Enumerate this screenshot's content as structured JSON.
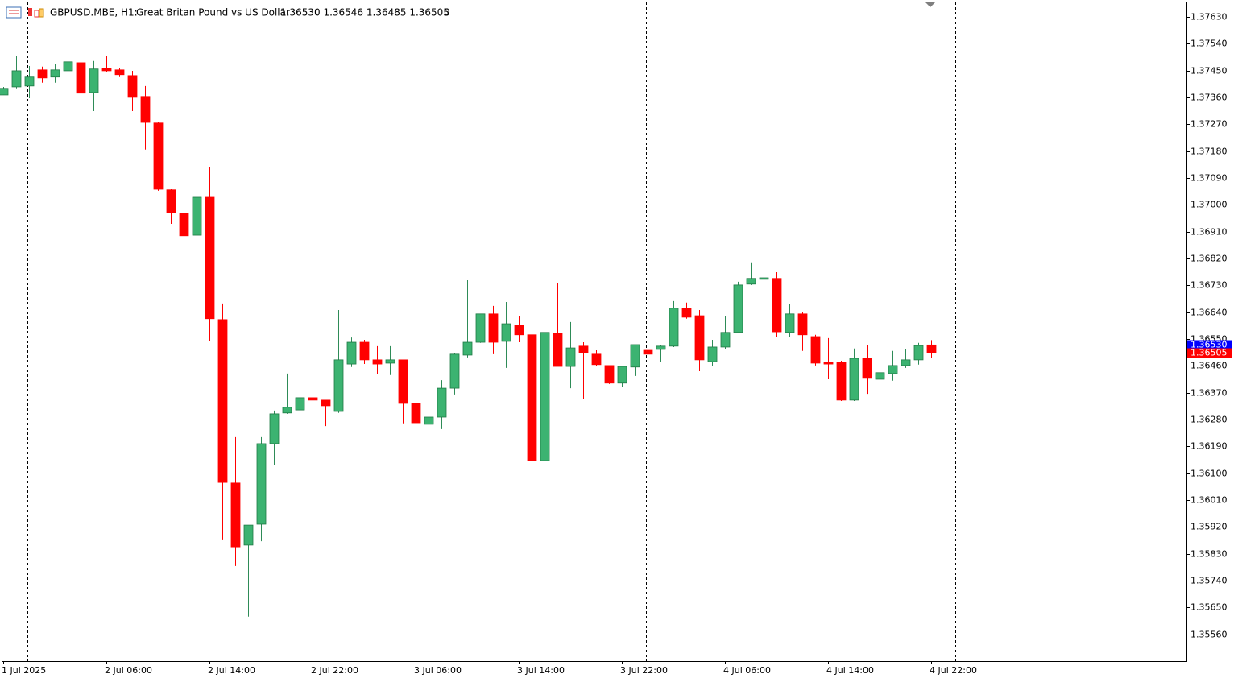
{
  "header": {
    "symbol": "GBPUSD.MBE, H1:",
    "description": "Great Britan Pound vs US Dollar",
    "ohlc": "1.36530 1.36546 1.36485 1.36505",
    "volume": "0"
  },
  "chart_data": {
    "type": "candlestick",
    "categories": [
      "1 Jul 2025",
      null,
      null,
      null,
      null,
      null,
      null,
      null,
      "2 Jul 06:00",
      null,
      null,
      null,
      null,
      null,
      null,
      null,
      "2 Jul 14:00",
      null,
      null,
      null,
      null,
      null,
      null,
      null,
      "2 Jul 22:00",
      null,
      null,
      null,
      null,
      null,
      null,
      null,
      "3 Jul 06:00",
      null,
      null,
      null,
      null,
      null,
      null,
      null,
      "3 Jul 14:00",
      null,
      null,
      null,
      null,
      null,
      null,
      null,
      "3 Jul 22:00",
      null,
      null,
      null,
      null,
      null,
      null,
      null,
      "4 Jul 06:00",
      null,
      null,
      null,
      null,
      null,
      null,
      null,
      "4 Jul 14:00",
      null,
      null,
      null,
      null,
      null,
      null,
      null,
      "4 Jul 22:00"
    ],
    "open": [
      1.37368,
      1.37395,
      1.37398,
      1.37452,
      1.37428,
      1.37449,
      1.37476,
      1.37376,
      1.37457,
      1.37452,
      1.37433,
      1.37363,
      1.37274,
      1.3705,
      1.36971,
      1.36898,
      1.37025,
      1.36615,
      1.36067,
      1.35859,
      1.35929,
      1.36199,
      1.36302,
      1.36312,
      1.36353,
      1.36345,
      1.36307,
      1.36466,
      1.36539,
      1.3648,
      1.36469,
      1.3648,
      1.36334,
      1.36264,
      1.36288,
      1.36385,
      1.36496,
      1.36539,
      1.36634,
      1.36542,
      1.36596,
      1.36564,
      1.36142,
      1.36569,
      1.36458,
      1.36526,
      1.36499,
      1.36461,
      1.36402,
      1.36456,
      1.36512,
      1.36515,
      1.36526,
      1.36653,
      1.36628,
      1.36474,
      1.36523,
      1.36572,
      1.36734,
      1.3675,
      1.36753,
      1.36572,
      1.36634,
      1.36558,
      1.36472,
      1.36472,
      1.36345,
      1.36485,
      1.36415,
      1.36434,
      1.36461,
      1.3648,
      1.3653
    ],
    "high": [
      1.37395,
      1.37498,
      1.37465,
      1.37463,
      1.37471,
      1.37492,
      1.37519,
      1.37482,
      1.375,
      1.37457,
      1.37449,
      1.37398,
      1.37276,
      1.37052,
      1.37001,
      1.37079,
      1.37125,
      1.36669,
      1.36221,
      1.35926,
      1.36221,
      1.3631,
      1.36434,
      1.36402,
      1.36364,
      1.36345,
      1.36647,
      1.36555,
      1.36547,
      1.36526,
      1.36526,
      1.3648,
      1.36334,
      1.36294,
      1.36412,
      1.36504,
      1.36747,
      1.36634,
      1.36661,
      1.36674,
      1.36628,
      1.36572,
      1.36585,
      1.36736,
      1.36607,
      1.36539,
      1.36512,
      1.36461,
      1.36458,
      1.36531,
      1.36518,
      1.36531,
      1.36677,
      1.36672,
      1.36647,
      1.36547,
      1.36626,
      1.36742,
      1.36807,
      1.36809,
      1.36774,
      1.36666,
      1.36639,
      1.36564,
      1.36553,
      1.36477,
      1.36518,
      1.36531,
      1.36461,
      1.3651,
      1.36515,
      1.36537,
      1.36546
    ],
    "low": [
      1.37368,
      1.3739,
      1.37357,
      1.37409,
      1.37409,
      1.37444,
      1.37368,
      1.37314,
      1.37444,
      1.37428,
      1.37314,
      1.37185,
      1.37047,
      1.36936,
      1.36874,
      1.36888,
      1.36542,
      1.35878,
      1.35789,
      1.35619,
      1.35872,
      1.36126,
      1.36299,
      1.36294,
      1.36264,
      1.36258,
      1.36302,
      1.36456,
      1.36466,
      1.36431,
      1.36429,
      1.36267,
      1.36234,
      1.36226,
      1.36248,
      1.36364,
      1.36488,
      1.36537,
      1.36499,
      1.36453,
      1.36539,
      1.35848,
      1.36107,
      1.36458,
      1.36385,
      1.3635,
      1.36458,
      1.36399,
      1.36388,
      1.36426,
      1.36418,
      1.36472,
      1.36523,
      1.36618,
      1.36442,
      1.36458,
      1.36515,
      1.36569,
      1.36731,
      1.36653,
      1.36558,
      1.36558,
      1.3651,
      1.36461,
      1.36415,
      1.36342,
      1.36342,
      1.36366,
      1.36385,
      1.3641,
      1.36453,
      1.36464,
      1.36485
    ],
    "close": [
      1.3739,
      1.37449,
      1.37428,
      1.37425,
      1.37452,
      1.37479,
      1.37374,
      1.37455,
      1.37449,
      1.37436,
      1.3736,
      1.37276,
      1.37052,
      1.36974,
      1.36896,
      1.37025,
      1.36618,
      1.36069,
      1.35853,
      1.35926,
      1.36199,
      1.36299,
      1.36321,
      1.36353,
      1.36345,
      1.36326,
      1.3648,
      1.36539,
      1.3648,
      1.36466,
      1.3648,
      1.36334,
      1.36269,
      1.36288,
      1.36385,
      1.36499,
      1.36539,
      1.36634,
      1.36539,
      1.36601,
      1.36564,
      1.36142,
      1.36572,
      1.36458,
      1.3652,
      1.36504,
      1.36464,
      1.36402,
      1.36458,
      1.36531,
      1.36499,
      1.36526,
      1.36653,
      1.36623,
      1.3648,
      1.36523,
      1.36572,
      1.36731,
      1.36753,
      1.36755,
      1.36574,
      1.36634,
      1.36564,
      1.36469,
      1.36466,
      1.36345,
      1.36485,
      1.36418,
      1.36437,
      1.36461,
      1.3648,
      1.36528,
      1.36505
    ],
    "up_color": "#3cb371",
    "down_color": "#ff0000",
    "ylim": [
      1.3547,
      1.37681
    ],
    "yticks": [
      {
        "value": 1.3763,
        "label": "1.37630"
      },
      {
        "value": 1.3754,
        "label": "1.37540"
      },
      {
        "value": 1.3745,
        "label": "1.37450"
      },
      {
        "value": 1.3736,
        "label": "1.37360"
      },
      {
        "value": 1.3727,
        "label": "1.37270"
      },
      {
        "value": 1.3718,
        "label": "1.37180"
      },
      {
        "value": 1.3709,
        "label": "1.37090"
      },
      {
        "value": 1.37,
        "label": "1.37000"
      },
      {
        "value": 1.3691,
        "label": "1.36910"
      },
      {
        "value": 1.3682,
        "label": "1.36820"
      },
      {
        "value": 1.3673,
        "label": "1.36730"
      },
      {
        "value": 1.3664,
        "label": "1.36640"
      },
      {
        "value": 1.3655,
        "label": "1.36550"
      },
      {
        "value": 1.3646,
        "label": "1.36460"
      },
      {
        "value": 1.3637,
        "label": "1.36370"
      },
      {
        "value": 1.3628,
        "label": "1.36280"
      },
      {
        "value": 1.3619,
        "label": "1.36190"
      },
      {
        "value": 1.361,
        "label": "1.36100"
      },
      {
        "value": 1.3601,
        "label": "1.36010"
      },
      {
        "value": 1.3592,
        "label": "1.35920"
      },
      {
        "value": 1.3583,
        "label": "1.35830"
      },
      {
        "value": 1.3574,
        "label": "1.35740"
      },
      {
        "value": 1.3565,
        "label": "1.35650"
      },
      {
        "value": 1.3556,
        "label": "1.35560"
      }
    ],
    "price_lines": [
      {
        "value": 1.3653,
        "label": "1.36530",
        "color": "#0000ff"
      },
      {
        "value": 1.36505,
        "label": "1.36505",
        "color": "#ff0000"
      }
    ]
  }
}
